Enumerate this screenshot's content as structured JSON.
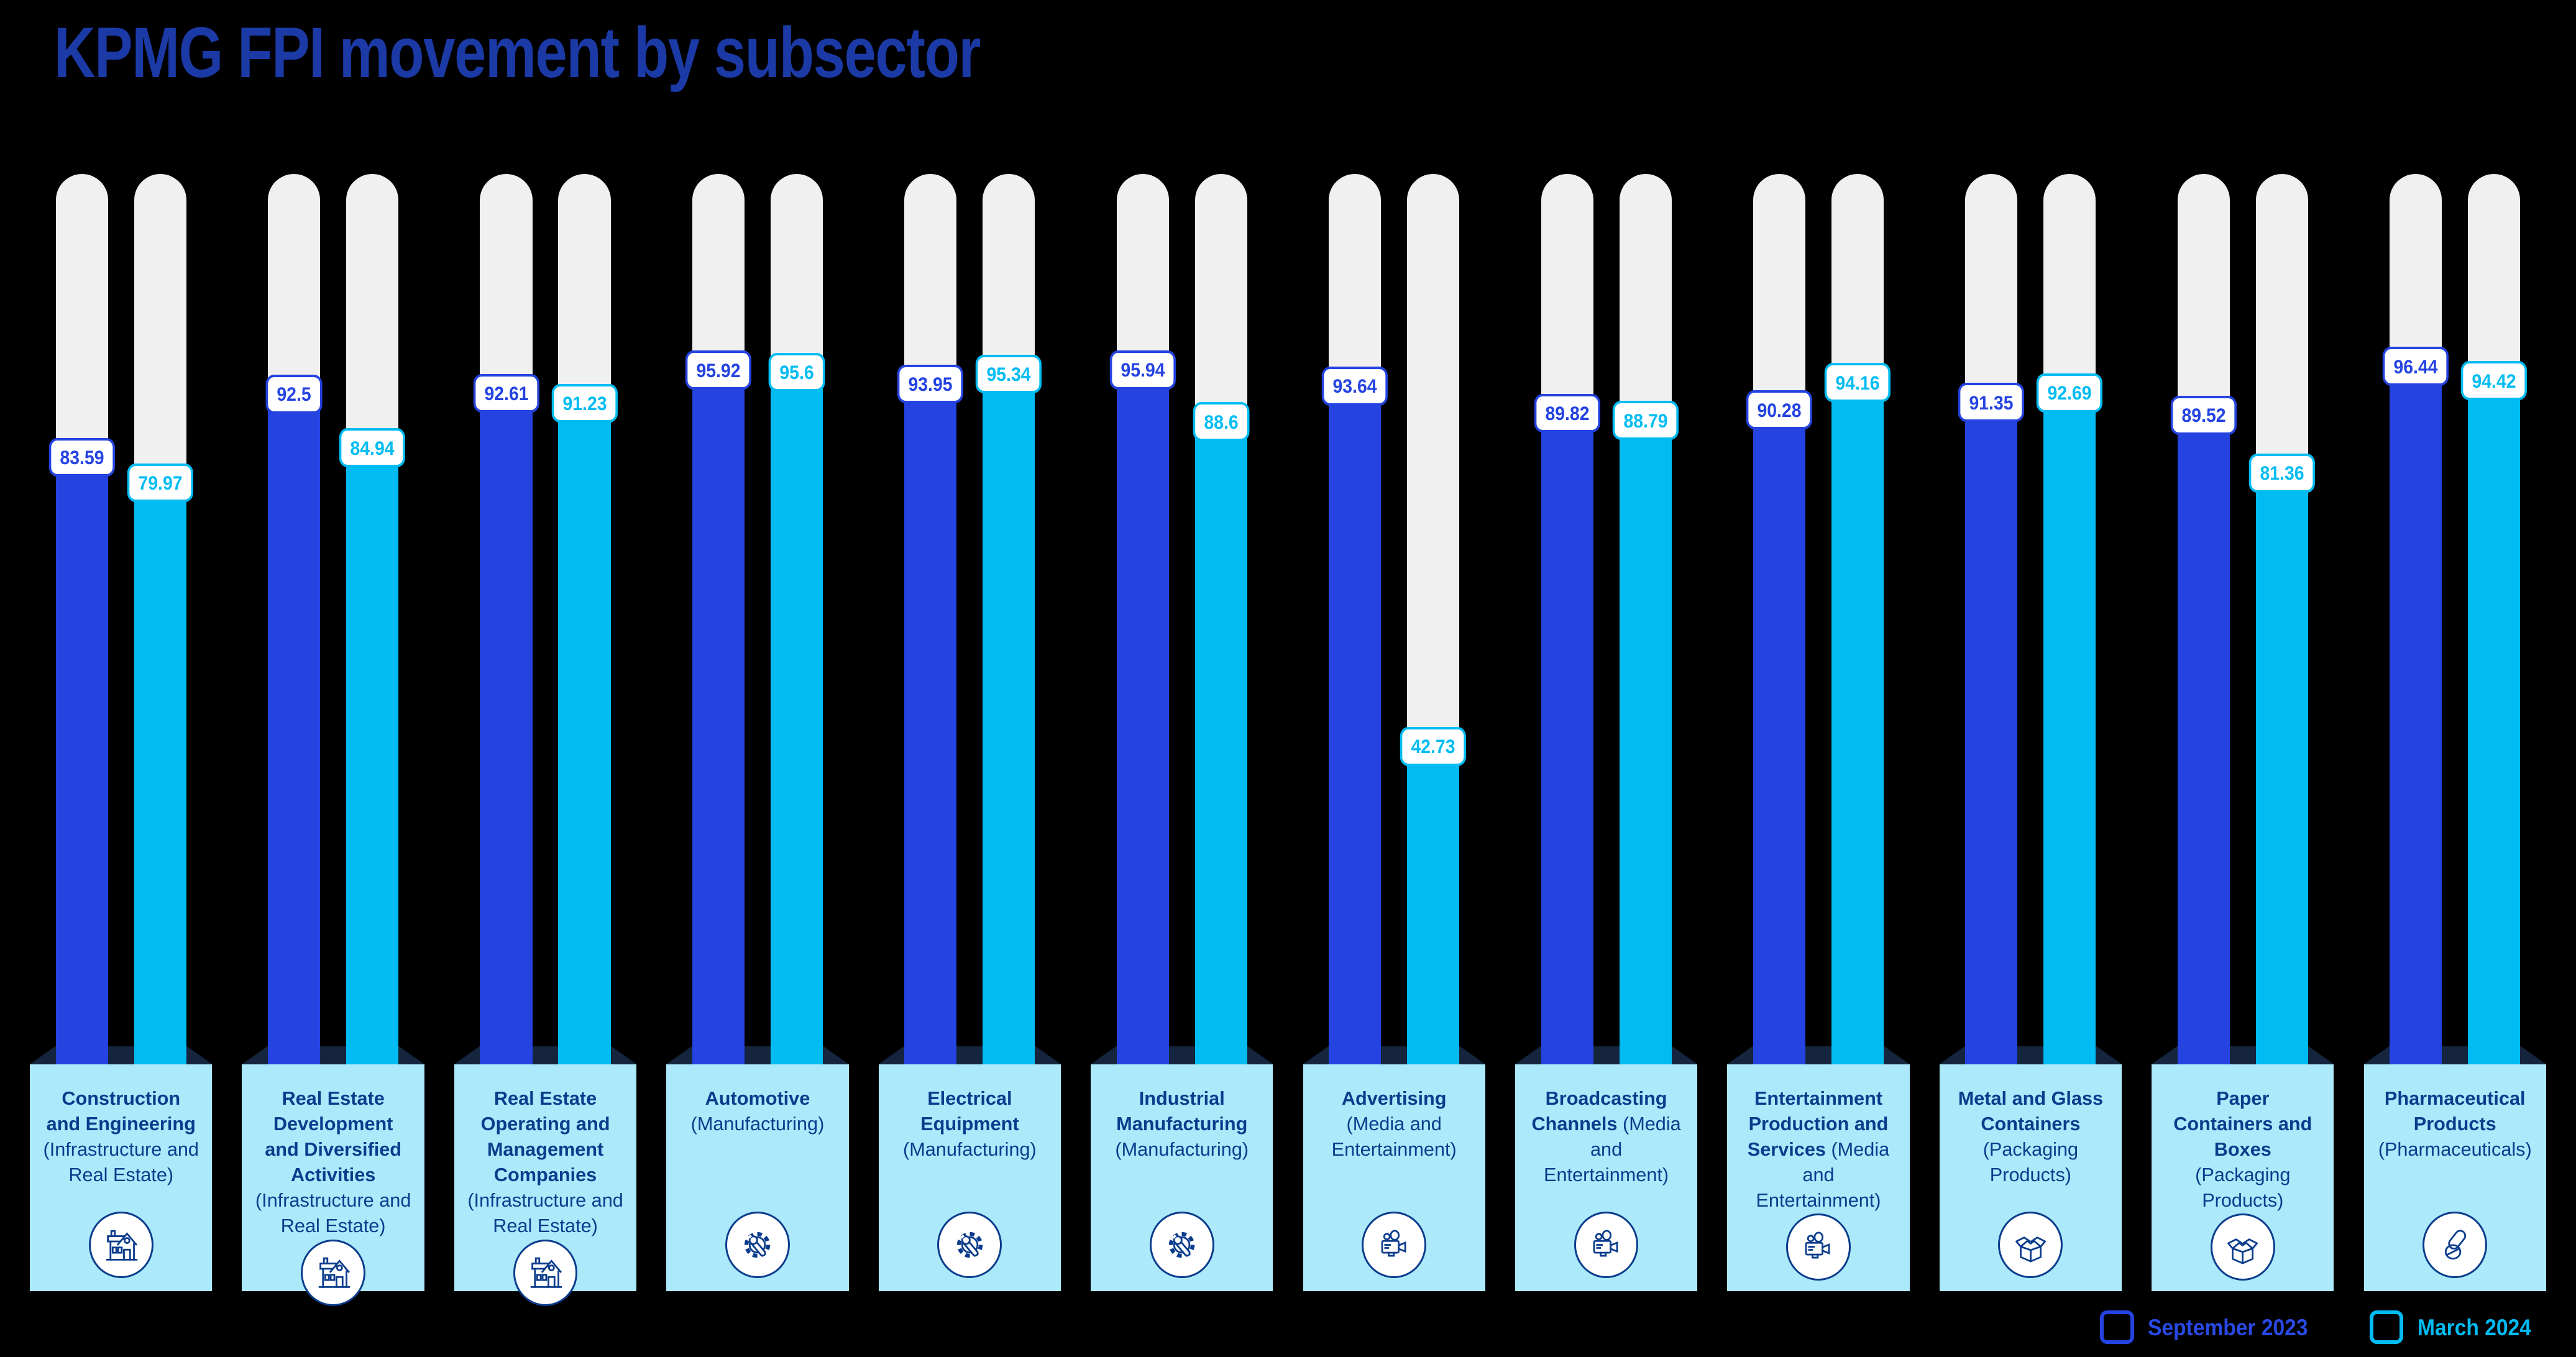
{
  "title": "KPMG FPI movement by subsector",
  "colors": {
    "september_blue": "#2443E1",
    "march_cyan": "#00BCF2",
    "title_navy": "#1B3AA6",
    "card_background": "#ACE9FB",
    "card_text_navy": "#0B3C8C",
    "track_gray": "#F0F0F1",
    "ribbon_fold_navy": "#16253E",
    "page_background": "#000000"
  },
  "legend": {
    "september": {
      "label": "September 2023",
      "color": "#2443E1"
    },
    "march": {
      "label": "March 2024",
      "color": "#00BCF2"
    }
  },
  "chart_data": {
    "type": "bar",
    "title": "KPMG FPI movement by subsector",
    "ylim": [
      0,
      100
    ],
    "grid": false,
    "legend_position": "bottom-right",
    "series_names": [
      "September 2023",
      "March 2024"
    ],
    "subsectors": [
      {
        "name": "Construction and Engineering",
        "qualifier": "(Infrastructure and Real Estate)",
        "icon": "house-icon",
        "values": [
          83.59,
          79.97
        ]
      },
      {
        "name": "Real Estate Development and Diversified Activities",
        "qualifier": "(Infrastructure and Real Estate)",
        "icon": "house-icon",
        "values": [
          92.5,
          84.94
        ]
      },
      {
        "name": "Real Estate Operating and Management Companies",
        "qualifier": "(Infrastructure and Real Estate)",
        "icon": "house-icon",
        "values": [
          92.61,
          91.23
        ]
      },
      {
        "name": "Automotive",
        "qualifier": "(Manufacturing)",
        "icon": "gear-wrench-icon",
        "values": [
          95.92,
          95.6
        ]
      },
      {
        "name": "Electrical Equipment",
        "qualifier": "(Manufacturing)",
        "icon": "gear-wrench-icon",
        "values": [
          93.95,
          95.34
        ]
      },
      {
        "name": "Industrial Manufacturing",
        "qualifier": "(Manufacturing)",
        "icon": "gear-wrench-icon",
        "values": [
          95.94,
          88.6
        ]
      },
      {
        "name": "Advertising",
        "qualifier": "(Media and Entertainment)",
        "icon": "video-camera-icon",
        "values": [
          93.64,
          42.73
        ]
      },
      {
        "name": "Broadcasting Channels",
        "qualifier": "(Media and Entertainment)",
        "icon": "video-camera-icon",
        "values": [
          89.82,
          88.79
        ]
      },
      {
        "name": "Entertainment Production and Services",
        "qualifier": "(Media and Entertainment)",
        "icon": "video-camera-icon",
        "values": [
          90.28,
          94.16
        ]
      },
      {
        "name": "Metal and Glass Containers",
        "qualifier": "(Packaging Products)",
        "icon": "open-box-icon",
        "values": [
          91.35,
          92.69
        ]
      },
      {
        "name": "Paper Containers and Boxes",
        "qualifier": "(Packaging Products)",
        "icon": "open-box-icon",
        "values": [
          89.52,
          81.36
        ]
      },
      {
        "name": "Pharmaceutical Products",
        "qualifier": "(Pharmaceuticals)",
        "icon": "pills-icon",
        "values": [
          96.44,
          94.42
        ]
      }
    ]
  }
}
